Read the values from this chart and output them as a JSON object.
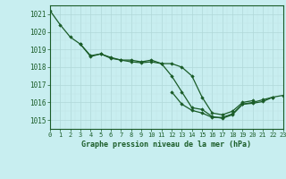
{
  "title": "Graphe pression niveau de la mer (hPa)",
  "bg_color": "#c8eef0",
  "grid_color_major": "#b0d8d8",
  "grid_color_minor": "#c0e4e4",
  "line_color": "#1a5c28",
  "marker_color": "#1a5c28",
  "xlim": [
    0,
    23
  ],
  "ylim": [
    1014.5,
    1021.5
  ],
  "yticks": [
    1015,
    1016,
    1017,
    1018,
    1019,
    1020,
    1021
  ],
  "xticks": [
    0,
    1,
    2,
    3,
    4,
    5,
    6,
    7,
    8,
    9,
    10,
    11,
    12,
    13,
    14,
    15,
    16,
    17,
    18,
    19,
    20,
    21,
    22,
    23
  ],
  "series": [
    [
      1021.2,
      1020.4,
      1019.7,
      1019.3,
      1018.6,
      1018.75,
      1018.5,
      1018.4,
      1018.3,
      1018.25,
      1018.3,
      1018.2,
      1017.5,
      1016.6,
      1015.7,
      1015.6,
      1015.2,
      1015.1,
      1015.3,
      1015.9,
      1016.0,
      1016.15,
      1016.3,
      null
    ],
    [
      null,
      null,
      null,
      1019.3,
      1018.65,
      1018.75,
      1018.55,
      1018.4,
      1018.4,
      1018.3,
      1018.4,
      1018.2,
      1018.2,
      1018.0,
      1017.5,
      1016.3,
      1015.4,
      1015.3,
      1015.5,
      1016.0,
      1016.1,
      null,
      null,
      null
    ],
    [
      null,
      null,
      null,
      null,
      null,
      null,
      null,
      null,
      null,
      null,
      null,
      null,
      1016.6,
      1015.9,
      1015.55,
      1015.4,
      1015.15,
      1015.15,
      1015.35,
      1015.9,
      1015.95,
      1016.05,
      1016.3,
      1016.4
    ]
  ]
}
